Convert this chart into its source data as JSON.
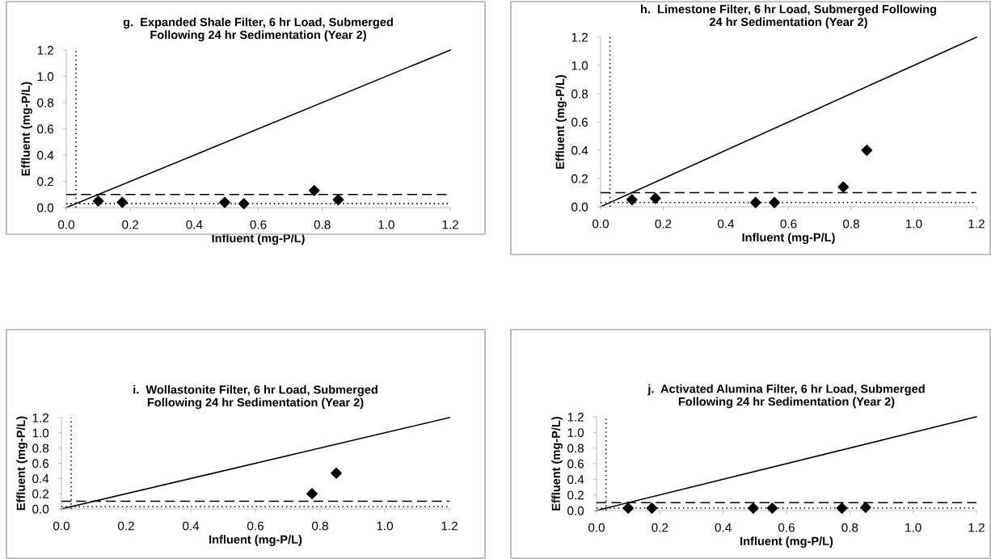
{
  "chart_data": [
    {
      "type": "scatter",
      "title": "g.  Expanded Shale Filter, 6 hr Load, Submerged\nFollowing 24 hr Sedimentation (Year 2)",
      "xlabel": "Influent (mg-P/L)",
      "ylabel": "Effluent (mg-P/L)",
      "xlim": [
        0,
        1.2
      ],
      "ylim": [
        0,
        1.2
      ],
      "xticks": [
        {
          "value": 0,
          "label": "0.0"
        },
        {
          "value": 0.2,
          "label": "0.2"
        },
        {
          "value": 0.4,
          "label": "0.4"
        },
        {
          "value": 0.6,
          "label": "0.6"
        },
        {
          "value": 0.8,
          "label": "0.8"
        },
        {
          "value": 1.0,
          "label": "1.0"
        },
        {
          "value": 1.2,
          "label": "1.2"
        }
      ],
      "yticks": [
        {
          "value": 0,
          "label": "0.0"
        },
        {
          "value": 0.2,
          "label": "0.2"
        },
        {
          "value": 0.4,
          "label": "0.4"
        },
        {
          "value": 0.6,
          "label": "0.6"
        },
        {
          "value": 0.8,
          "label": "0.8"
        },
        {
          "value": 1.0,
          "label": "1.0"
        },
        {
          "value": 1.2,
          "label": "1.2"
        }
      ],
      "marker": "diamond",
      "series": [
        {
          "type": "line",
          "x": [
            0,
            1.2
          ],
          "values": [
            0,
            1.2
          ],
          "color": "#000000",
          "marker": "none",
          "line_style": "solid"
        },
        {
          "x": [
            0.1,
            0.175,
            0.495,
            0.555,
            0.775,
            0.85
          ],
          "values": [
            0.05,
            0.04,
            0.04,
            0.03,
            0.13,
            0.06
          ],
          "color": "#000000"
        }
      ],
      "ref_lines": [
        {
          "axis": "y",
          "value": 0.1,
          "line_style": "dashed",
          "color": "#000000"
        },
        {
          "axis": "y",
          "value": 0.03,
          "line_style": "dotted",
          "color": "#000000"
        },
        {
          "axis": "x",
          "value": 0.03,
          "line_style": "dotted",
          "color": "#000000"
        }
      ]
    },
    {
      "type": "scatter",
      "title": "h.  Limestone Filter, 6 hr Load, Submerged Following\n24 hr Sedimentation (Year 2)",
      "xlabel": "Influent (mg-P/L)",
      "ylabel": "Effluent (mg-P/L)",
      "xlim": [
        0,
        1.2
      ],
      "ylim": [
        0,
        1.2
      ],
      "xticks": [
        {
          "value": 0,
          "label": "0.0"
        },
        {
          "value": 0.2,
          "label": "0.2"
        },
        {
          "value": 0.4,
          "label": "0.4"
        },
        {
          "value": 0.6,
          "label": "0.6"
        },
        {
          "value": 0.8,
          "label": "0.8"
        },
        {
          "value": 1.0,
          "label": "1.0"
        },
        {
          "value": 1.2,
          "label": "1.2"
        }
      ],
      "yticks": [
        {
          "value": 0,
          "label": "0.0"
        },
        {
          "value": 0.2,
          "label": "0.2"
        },
        {
          "value": 0.4,
          "label": "0.4"
        },
        {
          "value": 0.6,
          "label": "0.6"
        },
        {
          "value": 0.8,
          "label": "0.8"
        },
        {
          "value": 1.0,
          "label": "1.0"
        },
        {
          "value": 1.2,
          "label": "1.2"
        }
      ],
      "marker": "diamond",
      "series": [
        {
          "type": "line",
          "x": [
            0,
            1.2
          ],
          "values": [
            0,
            1.2
          ],
          "color": "#000000",
          "marker": "none",
          "line_style": "solid"
        },
        {
          "x": [
            0.1,
            0.175,
            0.495,
            0.555,
            0.775,
            0.85
          ],
          "values": [
            0.05,
            0.06,
            0.03,
            0.03,
            0.14,
            0.4
          ],
          "color": "#000000"
        }
      ],
      "ref_lines": [
        {
          "axis": "y",
          "value": 0.1,
          "line_style": "dashed",
          "color": "#000000"
        },
        {
          "axis": "y",
          "value": 0.03,
          "line_style": "dotted",
          "color": "#000000"
        },
        {
          "axis": "x",
          "value": 0.03,
          "line_style": "dotted",
          "color": "#000000"
        }
      ]
    },
    {
      "type": "scatter",
      "title": "i.  Wollastonite Filter, 6 hr Load, Submerged\nFollowing 24 hr Sedimentation (Year 2)",
      "xlabel": "Influent (mg-P/L)",
      "ylabel": "Effluent (mg-P/L)",
      "xlim": [
        0,
        1.2
      ],
      "ylim": [
        0,
        1.2
      ],
      "xticks": [
        {
          "value": 0,
          "label": "0.0"
        },
        {
          "value": 0.2,
          "label": "0.2"
        },
        {
          "value": 0.4,
          "label": "0.4"
        },
        {
          "value": 0.6,
          "label": "0.6"
        },
        {
          "value": 0.8,
          "label": "0.8"
        },
        {
          "value": 1.0,
          "label": "1.0"
        },
        {
          "value": 1.2,
          "label": "1.2"
        }
      ],
      "yticks": [
        {
          "value": 0,
          "label": "0.0"
        },
        {
          "value": 0.2,
          "label": "0.2"
        },
        {
          "value": 0.4,
          "label": "0.4"
        },
        {
          "value": 0.6,
          "label": "0.6"
        },
        {
          "value": 0.8,
          "label": "0.8"
        },
        {
          "value": 1.0,
          "label": "1.0"
        },
        {
          "value": 1.2,
          "label": "1.2"
        }
      ],
      "marker": "diamond",
      "series": [
        {
          "type": "line",
          "x": [
            0,
            1.2
          ],
          "values": [
            0,
            1.2
          ],
          "color": "#000000",
          "marker": "none",
          "line_style": "solid"
        },
        {
          "x": [
            0.775,
            0.85
          ],
          "values": [
            0.2,
            0.47
          ],
          "color": "#000000"
        }
      ],
      "ref_lines": [
        {
          "axis": "y",
          "value": 0.1,
          "line_style": "dashed",
          "color": "#000000"
        },
        {
          "axis": "y",
          "value": 0.03,
          "line_style": "dotted",
          "color": "#000000"
        },
        {
          "axis": "x",
          "value": 0.03,
          "line_style": "dotted",
          "color": "#000000"
        }
      ]
    },
    {
      "type": "scatter",
      "title": "j.  Activated Alumina Filter, 6 hr Load, Submerged\nFollowing 24 hr Sedimentation (Year 2)",
      "xlabel": "Influent (mg-P/L)",
      "ylabel": "Effluent (mg-P/L)",
      "xlim": [
        0,
        1.2
      ],
      "ylim": [
        0,
        1.2
      ],
      "xticks": [
        {
          "value": 0,
          "label": "0.0"
        },
        {
          "value": 0.2,
          "label": "0.2"
        },
        {
          "value": 0.4,
          "label": "0.4"
        },
        {
          "value": 0.6,
          "label": "0.6"
        },
        {
          "value": 0.8,
          "label": "0.8"
        },
        {
          "value": 1.0,
          "label": "1.0"
        },
        {
          "value": 1.2,
          "label": "1.2"
        }
      ],
      "yticks": [
        {
          "value": 0,
          "label": "0.0"
        },
        {
          "value": 0.2,
          "label": "0.2"
        },
        {
          "value": 0.4,
          "label": "0.4"
        },
        {
          "value": 0.6,
          "label": "0.6"
        },
        {
          "value": 0.8,
          "label": "0.8"
        },
        {
          "value": 1.0,
          "label": "1.0"
        },
        {
          "value": 1.2,
          "label": "1.2"
        }
      ],
      "marker": "diamond",
      "series": [
        {
          "type": "line",
          "x": [
            0,
            1.2
          ],
          "values": [
            0,
            1.2
          ],
          "color": "#000000",
          "marker": "none",
          "line_style": "solid"
        },
        {
          "x": [
            0.1,
            0.175,
            0.495,
            0.555,
            0.775,
            0.85
          ],
          "values": [
            0.03,
            0.03,
            0.03,
            0.03,
            0.03,
            0.04
          ],
          "color": "#000000"
        }
      ],
      "ref_lines": [
        {
          "axis": "y",
          "value": 0.1,
          "line_style": "dashed",
          "color": "#000000"
        },
        {
          "axis": "y",
          "value": 0.03,
          "line_style": "dotted",
          "color": "#000000"
        },
        {
          "axis": "x",
          "value": 0.03,
          "line_style": "dotted",
          "color": "#000000"
        }
      ]
    }
  ]
}
